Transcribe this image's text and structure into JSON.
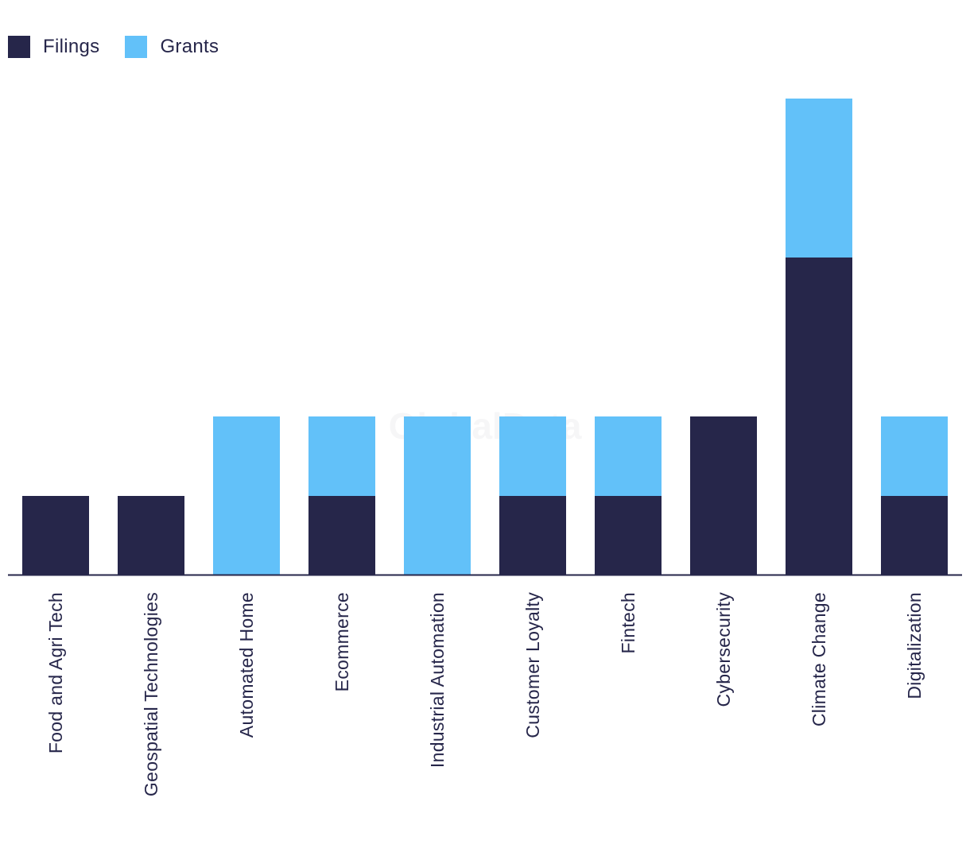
{
  "chart_data": {
    "type": "bar",
    "stacked": true,
    "categories": [
      "Food and Agri Tech",
      "Geospatial Technologies",
      "Automated Home",
      "Ecommerce",
      "Industrial Automation",
      "Customer Loyalty",
      "Fintech",
      "Cybersecurity",
      "Climate Change",
      "Digitalization"
    ],
    "series": [
      {
        "name": "Filings",
        "color": "#26264a",
        "values": [
          1,
          1,
          0,
          1,
          0,
          1,
          1,
          2,
          4,
          1
        ]
      },
      {
        "name": "Grants",
        "color": "#62c1f9",
        "values": [
          0,
          0,
          2,
          1,
          2,
          1,
          1,
          0,
          2,
          1
        ]
      }
    ],
    "title": "",
    "xlabel": "",
    "ylabel": "",
    "ylim": [
      0,
      6
    ],
    "grid": false,
    "legend_position": "top-left"
  },
  "watermark": "GlobalData"
}
